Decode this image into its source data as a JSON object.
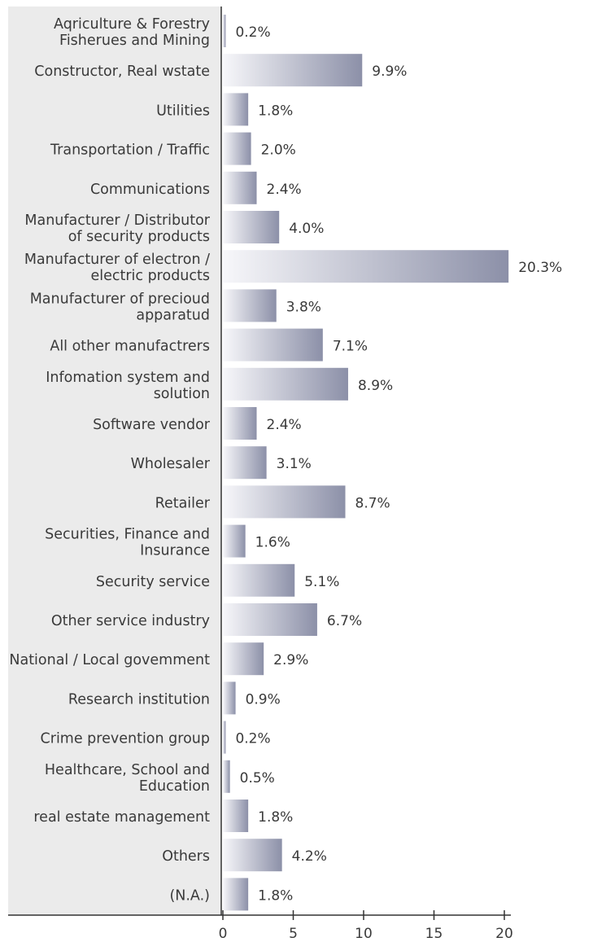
{
  "chart_data": {
    "type": "bar",
    "orientation": "horizontal",
    "categories": [
      [
        "Aqriculture & Forestry",
        "Fisherues and Mining"
      ],
      [
        "Constructor, Real wstate"
      ],
      [
        "Utilities"
      ],
      [
        "Transportation / Traffic"
      ],
      [
        "Communications"
      ],
      [
        "Manufacturer / Distributor",
        "of security products"
      ],
      [
        "Manufacturer of electron /",
        "electric products"
      ],
      [
        "Manufacturer of precioud",
        "apparatud"
      ],
      [
        "All other manufactrers"
      ],
      [
        "Infomation system and",
        "solution"
      ],
      [
        "Software vendor"
      ],
      [
        "Wholesaler"
      ],
      [
        "Retailer"
      ],
      [
        "Securities, Finance and",
        "Insurance"
      ],
      [
        "Security service"
      ],
      [
        "Other service industry"
      ],
      [
        "National / Local govemment"
      ],
      [
        "Research institution"
      ],
      [
        "Crime prevention group"
      ],
      [
        "Healthcare, School and",
        "Education"
      ],
      [
        "real estate management"
      ],
      [
        "Others"
      ],
      [
        "(N.A.)"
      ]
    ],
    "values": [
      0.2,
      9.9,
      1.8,
      2.0,
      2.4,
      4.0,
      20.3,
      3.8,
      7.1,
      8.9,
      2.4,
      3.1,
      8.7,
      1.6,
      5.1,
      6.7,
      2.9,
      0.9,
      0.2,
      0.5,
      1.8,
      4.2,
      1.8
    ],
    "value_labels": [
      "0.2%",
      "9.9%",
      "1.8%",
      "2.0%",
      "2.4%",
      "4.0%",
      "20.3%",
      "3.8%",
      "7.1%",
      "8.9%",
      "2.4%",
      "3.1%",
      "8.7%",
      "1.6%",
      "5.1%",
      "6.7%",
      "2.9%",
      "0.9%",
      "0.2%",
      "0.5%",
      "1.8%",
      "4.2%",
      "1.8%"
    ],
    "xticks": [
      "0",
      "5",
      "10",
      "15",
      "20"
    ],
    "xlim": [
      0,
      20
    ],
    "title": "",
    "xlabel": "",
    "ylabel": "",
    "grid": false,
    "colors": {
      "bar_light": "#f7f7fa",
      "bar_dark": "#8c90a8",
      "label_panel": "#ebebeb",
      "text": "#3a3a3a",
      "axis": "#333333"
    }
  }
}
